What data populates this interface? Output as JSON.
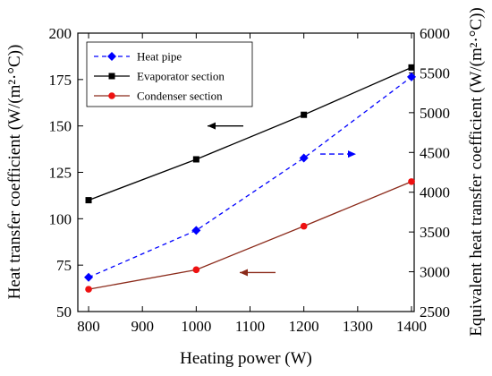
{
  "chart_data": {
    "type": "line",
    "xlabel": "Heating power (W)",
    "ylabel_left": "Heat transfer coefficient (W/(m²·°C))",
    "ylabel_right": "Equivalent heat transfer coefficient (W/(m²·°C))",
    "xlim": [
      780,
      1405
    ],
    "ylim_left": [
      50,
      200
    ],
    "ylim_right": [
      2500,
      6000
    ],
    "x_ticks": [
      "800",
      "900",
      "1000",
      "1100",
      "1200",
      "1300",
      "1400"
    ],
    "y_left_ticks": [
      "50",
      "75",
      "100",
      "125",
      "150",
      "175",
      "200"
    ],
    "y_right_ticks": [
      "2500",
      "3000",
      "3500",
      "4000",
      "4500",
      "5000",
      "5500",
      "6000"
    ],
    "x": [
      800,
      1000,
      1200,
      1400
    ],
    "legend_position": "top-left",
    "series": [
      {
        "name": "Heat pipe",
        "axis": "right",
        "values": [
          2930,
          3520,
          4430,
          5450
        ],
        "color": "#0000ff",
        "style": "dashed",
        "marker": "diamond"
      },
      {
        "name": "Evaporator section",
        "axis": "left",
        "values": [
          110,
          132,
          156,
          181.5
        ],
        "color": "#000000",
        "style": "solid",
        "marker": "square"
      },
      {
        "name": "Condenser section",
        "axis": "left",
        "values": [
          62,
          72.5,
          96,
          120
        ],
        "color": "#ee1111",
        "line_color": "#8b2a1a",
        "style": "solid",
        "marker": "circle"
      }
    ],
    "annotations": [
      {
        "type": "arrow",
        "points_to": "left",
        "series": "Evaporator section",
        "color": "#000000"
      },
      {
        "type": "arrow",
        "points_to": "right",
        "series": "Heat pipe",
        "color": "#0000ff",
        "style": "dashed"
      },
      {
        "type": "arrow",
        "points_to": "left",
        "series": "Condenser section",
        "color": "#8b2a1a"
      }
    ]
  }
}
